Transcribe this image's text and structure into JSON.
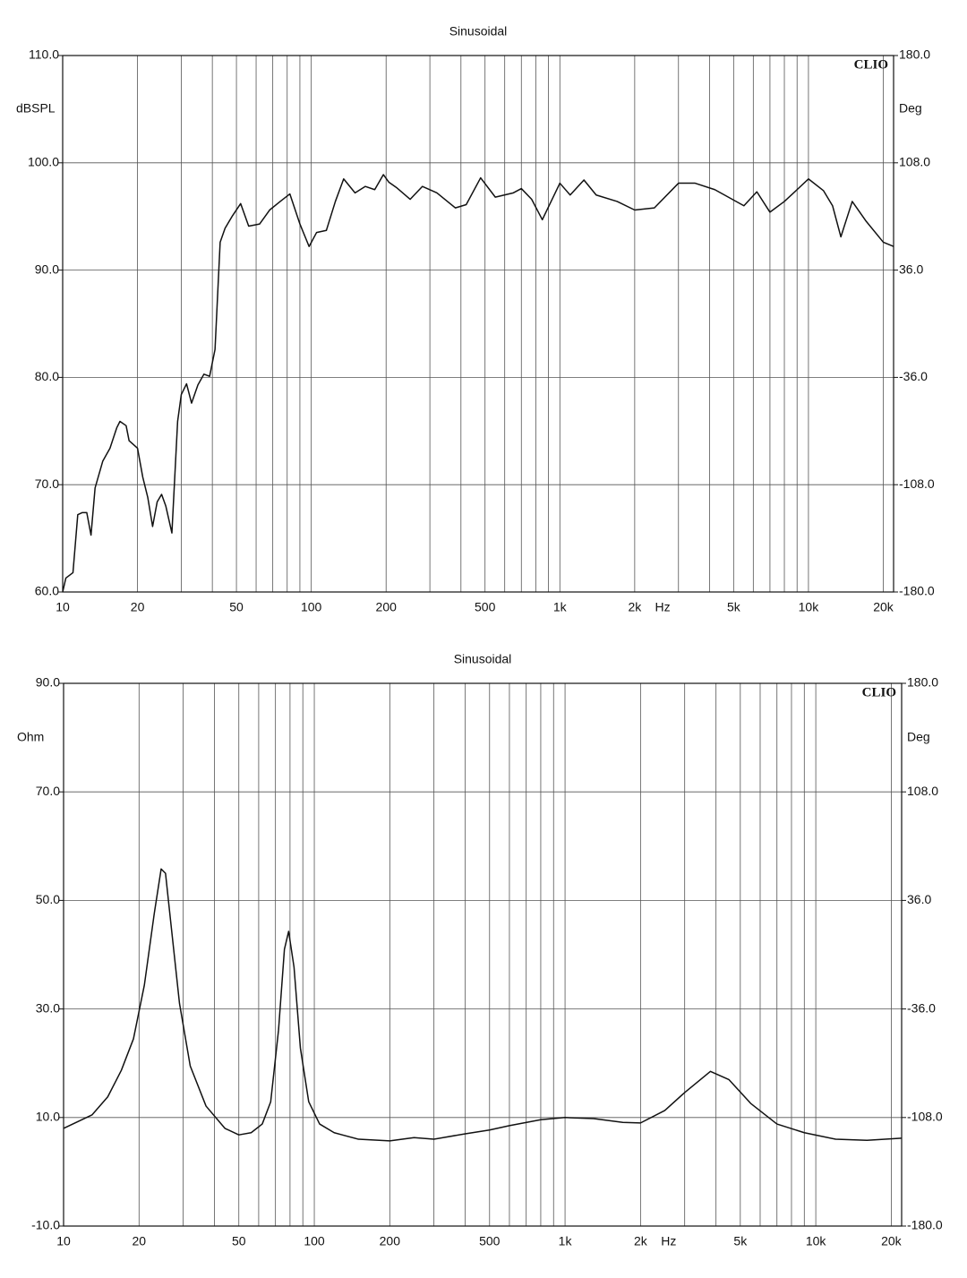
{
  "chart_data": [
    {
      "type": "line",
      "title": "Sinusoidal",
      "xlabel": "Hz",
      "ylabel": "dBSPL",
      "y2label": "Deg",
      "annotation": "CLIO",
      "xscale": "log",
      "grid": true,
      "xlim": [
        10,
        22000
      ],
      "xticks": [
        10,
        20,
        50,
        100,
        200,
        500,
        {
          "value": 1000,
          "label": "1k"
        },
        {
          "value": 2000,
          "label": "2k"
        },
        {
          "value": 5000,
          "label": "5k"
        },
        {
          "value": 10000,
          "label": "10k"
        },
        {
          "value": 20000,
          "label": "20k"
        }
      ],
      "xgrid": [
        30,
        40,
        60,
        70,
        80,
        90,
        300,
        400,
        600,
        700,
        800,
        900,
        3000,
        4000,
        6000,
        7000,
        8000,
        9000
      ],
      "ylim": [
        60,
        110
      ],
      "yticks": [
        {
          "value": 60,
          "label": "60.0"
        },
        {
          "value": 70,
          "label": "70.0"
        },
        {
          "value": 80,
          "label": "80.0"
        },
        {
          "value": 90,
          "label": "90.0"
        },
        {
          "value": 100,
          "label": "100.0"
        },
        {
          "value": 110,
          "label": "110.0"
        }
      ],
      "y2lim": [
        -180,
        180
      ],
      "y2ticks": [
        {
          "value": -180,
          "label": "-180.0"
        },
        {
          "value": -108,
          "label": "-108.0"
        },
        {
          "value": -36,
          "label": "-36.0"
        },
        {
          "value": 36,
          "label": "36.0"
        },
        {
          "value": 108,
          "label": "108.0"
        },
        {
          "value": 180,
          "label": "180.0"
        }
      ],
      "x": [
        10,
        10.3,
        11,
        11.5,
        12,
        12.5,
        13,
        13.5,
        14.5,
        15.5,
        16.5,
        17,
        18,
        18.5,
        20,
        21,
        22,
        23,
        24,
        25,
        26,
        27.5,
        29,
        30,
        31.5,
        33,
        35,
        37,
        39,
        41,
        43,
        45,
        48,
        52,
        56,
        62,
        68,
        75,
        82,
        90,
        98,
        105,
        115,
        125,
        135,
        150,
        165,
        180,
        195,
        205,
        220,
        250,
        280,
        320,
        380,
        420,
        480,
        550,
        650,
        700,
        770,
        850,
        1000,
        1100,
        1250,
        1400,
        1700,
        2000,
        2400,
        3000,
        3500,
        4200,
        5500,
        6200,
        7000,
        8000,
        9000,
        10000,
        11500,
        12500,
        13500,
        15000,
        17000,
        20000,
        22000
      ],
      "series": [
        {
          "color": "#111111",
          "values": [
            60,
            61.3,
            61.8,
            67.2,
            67.4,
            67.4,
            65.3,
            69.7,
            72.2,
            73.4,
            75.3,
            75.9,
            75.5,
            74.1,
            73.4,
            70.7,
            68.8,
            66.1,
            68.4,
            69.1,
            68,
            65.5,
            75.9,
            78.4,
            79.4,
            77.6,
            79.3,
            80.3,
            80.1,
            82.6,
            92.6,
            93.9,
            95,
            96.2,
            94.1,
            94.3,
            95.6,
            96.4,
            97.1,
            94.3,
            92.2,
            93.5,
            93.7,
            96.4,
            98.5,
            97.2,
            97.8,
            97.5,
            98.9,
            98.2,
            97.7,
            96.6,
            97.8,
            97.2,
            95.8,
            96.1,
            98.6,
            96.8,
            97.2,
            97.6,
            96.6,
            94.7,
            98.1,
            97,
            98.4,
            97,
            96.4,
            95.6,
            95.8,
            98.1,
            98.1,
            97.5,
            96,
            97.3,
            95.4,
            96.4,
            97.5,
            98.5,
            97.4,
            96,
            93.1,
            96.4,
            94.6,
            92.6,
            92.2
          ]
        }
      ]
    },
    {
      "type": "line",
      "title": "Sinusoidal",
      "xlabel": "Hz",
      "ylabel": "Ohm",
      "y2label": "Deg",
      "annotation": "CLIO",
      "xscale": "log",
      "grid": true,
      "xlim": [
        10,
        22000
      ],
      "xticks": [
        10,
        20,
        50,
        100,
        200,
        500,
        {
          "value": 1000,
          "label": "1k"
        },
        {
          "value": 2000,
          "label": "2k"
        },
        {
          "value": 5000,
          "label": "5k"
        },
        {
          "value": 10000,
          "label": "10k"
        },
        {
          "value": 20000,
          "label": "20k"
        }
      ],
      "xgrid": [
        30,
        40,
        60,
        70,
        80,
        90,
        300,
        400,
        600,
        700,
        800,
        900,
        3000,
        4000,
        6000,
        7000,
        8000,
        9000
      ],
      "ylim": [
        -10,
        90
      ],
      "yticks": [
        {
          "value": -10,
          "label": "-10.0"
        },
        {
          "value": 10,
          "label": "10.0"
        },
        {
          "value": 30,
          "label": "30.0"
        },
        {
          "value": 50,
          "label": "50.0"
        },
        {
          "value": 70,
          "label": "70.0"
        },
        {
          "value": 90,
          "label": "90.0"
        }
      ],
      "y2lim": [
        -180,
        180
      ],
      "y2ticks": [
        {
          "value": -180,
          "label": "-180.0"
        },
        {
          "value": -108,
          "label": "-108.0"
        },
        {
          "value": -36,
          "label": "-36.0"
        },
        {
          "value": 36,
          "label": "36.0"
        },
        {
          "value": 108,
          "label": "108.0"
        },
        {
          "value": 180,
          "label": "180.0"
        }
      ],
      "x": [
        10,
        13,
        15,
        17,
        19,
        21,
        23,
        24.5,
        25.5,
        27,
        29,
        32,
        37,
        44,
        50,
        56,
        62,
        67,
        72,
        76,
        79,
        83,
        88,
        95,
        105,
        120,
        150,
        200,
        250,
        300,
        400,
        500,
        600,
        800,
        1000,
        1300,
        1700,
        2000,
        2500,
        3000,
        3800,
        4500,
        5500,
        7000,
        9000,
        12000,
        16000,
        22000
      ],
      "series": [
        {
          "color": "#111111",
          "values": [
            8,
            10.5,
            13.8,
            18.7,
            24.5,
            34.4,
            47.6,
            55.8,
            55,
            44.3,
            31,
            19.5,
            12.1,
            8,
            6.8,
            7.2,
            8.8,
            12.9,
            26.1,
            41,
            44.3,
            37.7,
            22.8,
            12.9,
            8.8,
            7.2,
            6,
            5.7,
            6.3,
            6,
            7,
            7.7,
            8.5,
            9.6,
            10,
            9.8,
            9.1,
            9,
            11.3,
            14.6,
            18.5,
            17,
            12.6,
            8.8,
            7.2,
            6,
            5.8,
            6.2
          ]
        }
      ]
    }
  ]
}
